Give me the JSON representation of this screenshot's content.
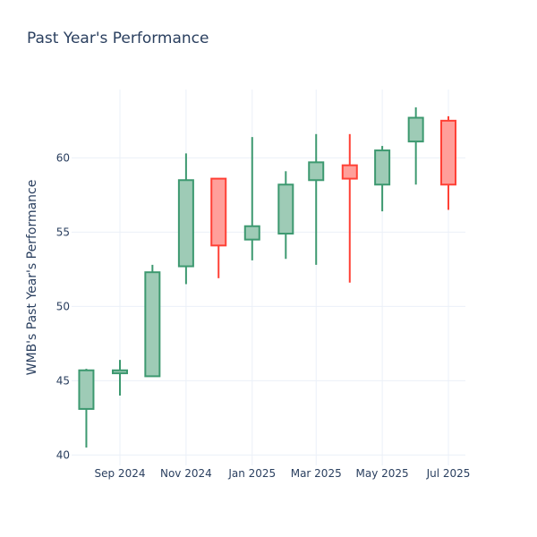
{
  "chart_data": {
    "type": "candlestick",
    "title": "Past Year's Performance",
    "ylabel": "WMB's Past Year's Performance",
    "xlabel": "",
    "ylim": [
      39.3,
      64.6
    ],
    "yticks": [
      40,
      45,
      50,
      55,
      60
    ],
    "xticks": [
      {
        "label": "Sep 2024",
        "date": "2024-09-01"
      },
      {
        "label": "Nov 2024",
        "date": "2024-11-01"
      },
      {
        "label": "Jan 2025",
        "date": "2025-01-01"
      },
      {
        "label": "Mar 2025",
        "date": "2025-03-01"
      },
      {
        "label": "May 2025",
        "date": "2025-05-01"
      },
      {
        "label": "Jul 2025",
        "date": "2025-07-01"
      }
    ],
    "grid": true,
    "colors": {
      "up_line": "#3D9970",
      "up_fill": "#9ecbb6",
      "down_line": "#FF4136",
      "down_fill": "#ff9f9a"
    },
    "candles": [
      {
        "date": "2024-08-01",
        "open": 43.1,
        "high": 45.8,
        "low": 40.5,
        "close": 45.7
      },
      {
        "date": "2024-09-01",
        "open": 45.5,
        "high": 46.4,
        "low": 44.0,
        "close": 45.7
      },
      {
        "date": "2024-10-01",
        "open": 45.3,
        "high": 52.8,
        "low": 45.3,
        "close": 52.3
      },
      {
        "date": "2024-11-01",
        "open": 52.7,
        "high": 60.3,
        "low": 51.5,
        "close": 58.5
      },
      {
        "date": "2024-12-01",
        "open": 58.6,
        "high": 58.6,
        "low": 51.9,
        "close": 54.1
      },
      {
        "date": "2025-01-01",
        "open": 54.5,
        "high": 61.4,
        "low": 53.1,
        "close": 55.4
      },
      {
        "date": "2025-02-01",
        "open": 54.9,
        "high": 59.1,
        "low": 53.2,
        "close": 58.2
      },
      {
        "date": "2025-03-01",
        "open": 58.5,
        "high": 61.6,
        "low": 52.8,
        "close": 59.7
      },
      {
        "date": "2025-04-01",
        "open": 59.5,
        "high": 61.6,
        "low": 51.6,
        "close": 58.6
      },
      {
        "date": "2025-05-01",
        "open": 58.2,
        "high": 60.8,
        "low": 56.4,
        "close": 60.5
      },
      {
        "date": "2025-06-01",
        "open": 61.1,
        "high": 63.4,
        "low": 58.2,
        "close": 62.7
      },
      {
        "date": "2025-07-01",
        "open": 62.5,
        "high": 62.8,
        "low": 56.5,
        "close": 58.2
      }
    ]
  }
}
